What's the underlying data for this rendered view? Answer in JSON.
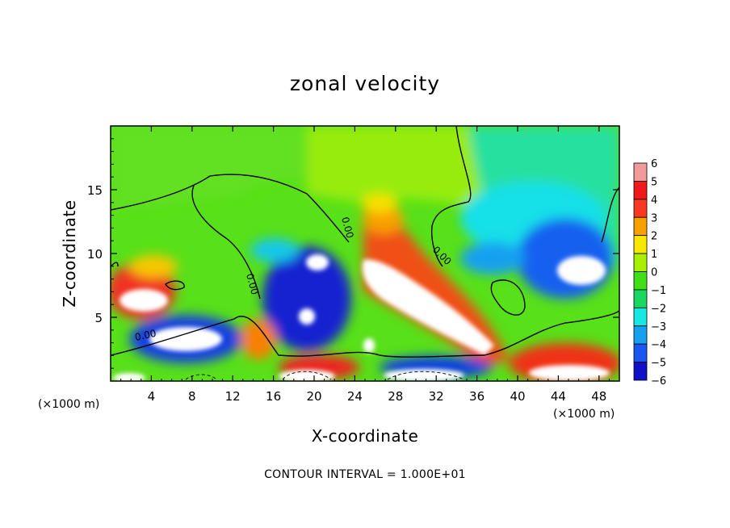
{
  "chart_data": {
    "type": "heatmap",
    "title": "zonal velocity",
    "xlabel": "X-coordinate",
    "ylabel": "Z-coordinate",
    "x_unit": "(×1000 m)",
    "y_unit": "(×1000 m)",
    "xlim": [
      0,
      50
    ],
    "ylim": [
      0,
      20
    ],
    "x_ticks": [
      4,
      8,
      12,
      16,
      20,
      24,
      28,
      32,
      36,
      40,
      44,
      48
    ],
    "y_ticks": [
      5,
      10,
      15
    ],
    "colorbar": {
      "levels": [
        6,
        5,
        4,
        3,
        2,
        1,
        0,
        -1,
        -2,
        -3,
        -4,
        -5,
        -6
      ],
      "colors": [
        "#f29a9a",
        "#f01818",
        "#f83820",
        "#f8a000",
        "#f8e800",
        "#a8f000",
        "#40e018",
        "#18d860",
        "#18e8e0",
        "#18a0f0",
        "#1858f0",
        "#1010c8",
        "#7010a0"
      ]
    },
    "contour_labels": [
      "0.00",
      "0.00",
      "0.00",
      "0.00"
    ],
    "footnote": "CONTOUR INTERVAL = 1.000E+01"
  }
}
